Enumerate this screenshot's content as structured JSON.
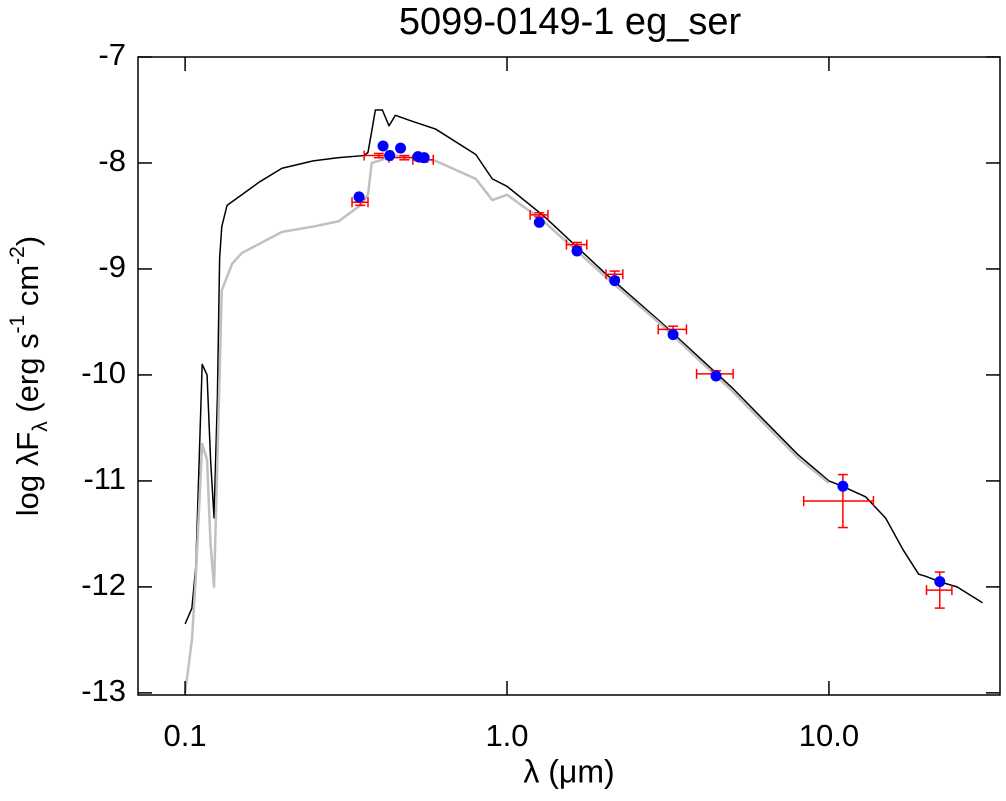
{
  "chart_data": {
    "type": "scatter",
    "title": "5099-0149-1   eg_ser",
    "xlabel": "λ (μm)",
    "ylabel": [
      "log λF",
      "λ",
      " (erg s",
      "-1",
      " cm",
      "-2",
      ")"
    ],
    "xlog": true,
    "xlim": [
      0.0714,
      34
    ],
    "ylim": [
      -13.02,
      -7
    ],
    "xticks": [
      0.1,
      {
        "value": 1.0,
        "label": "1.0"
      },
      {
        "value": 10.0,
        "label": "10.0"
      }
    ],
    "yticks": [
      -7,
      -8,
      -9,
      -10,
      -11,
      -12,
      -13
    ],
    "series": [
      {
        "style": "line",
        "color": "#000000",
        "x": [
          0.1,
          0.105,
          0.108,
          0.113,
          0.117,
          0.12,
          0.123,
          0.126,
          0.128,
          0.13,
          0.135,
          0.15,
          0.17,
          0.2,
          0.25,
          0.3,
          0.36,
          0.37,
          0.38,
          0.39,
          0.41,
          0.43,
          0.45,
          0.5,
          0.6,
          0.8,
          0.9,
          1.0,
          1.3,
          2.0,
          3.0,
          5.0,
          8.0,
          10.0,
          11.0,
          13.0,
          15.0,
          17.0,
          19.0,
          20.0,
          22.0,
          25.0,
          30.0
        ],
        "values": [
          -12.35,
          -12.2,
          -11.8,
          -9.9,
          -10.0,
          -10.8,
          -11.35,
          -10.2,
          -8.9,
          -8.6,
          -8.4,
          -8.3,
          -8.18,
          -8.05,
          -7.98,
          -7.95,
          -7.93,
          -7.9,
          -7.7,
          -7.5,
          -7.5,
          -7.65,
          -7.55,
          -7.6,
          -7.68,
          -7.92,
          -8.15,
          -8.22,
          -8.5,
          -9.03,
          -9.5,
          -10.12,
          -10.75,
          -11.0,
          -11.05,
          -11.15,
          -11.35,
          -11.65,
          -11.88,
          -11.9,
          -11.95,
          -12.0,
          -12.15
        ]
      },
      {
        "style": "line",
        "color": "#c0c0c0",
        "x": [
          0.1,
          0.105,
          0.108,
          0.113,
          0.117,
          0.12,
          0.123,
          0.126,
          0.13,
          0.14,
          0.15,
          0.2,
          0.25,
          0.3,
          0.35,
          0.37,
          0.38,
          0.45,
          0.6,
          0.8,
          0.9,
          1.0,
          1.3,
          2.0,
          3.0,
          5.0,
          8.0,
          10.0
        ],
        "values": [
          -13.0,
          -12.5,
          -11.9,
          -10.65,
          -10.8,
          -11.6,
          -12.0,
          -10.8,
          -9.2,
          -8.95,
          -8.85,
          -8.65,
          -8.6,
          -8.55,
          -8.4,
          -8.3,
          -8.0,
          -7.93,
          -7.98,
          -8.15,
          -8.35,
          -8.3,
          -8.55,
          -9.06,
          -9.52,
          -10.15,
          -10.78,
          -11.02
        ]
      },
      {
        "style": "errorbar",
        "color": "#ff0000",
        "x": [
          0.35,
          0.4,
          0.48,
          0.55,
          1.26,
          1.65,
          2.16,
          3.28,
          4.46,
          11.05,
          22.1
        ],
        "values": [
          -8.37,
          -7.93,
          -7.95,
          -7.97,
          -8.49,
          -8.77,
          -9.05,
          -9.57,
          -9.99,
          -11.19,
          -12.03
        ],
        "xerr": [
          0.02,
          0.04,
          0.05,
          0.04,
          0.08,
          0.12,
          0.13,
          0.33,
          0.58,
          2.7,
          2.0
        ],
        "yerr": [
          0.03,
          0.02,
          0.02,
          0.02,
          0.02,
          0.02,
          0.03,
          0.03,
          0.03,
          0.25,
          0.17
        ]
      },
      {
        "style": "marker",
        "color": "#0000ff",
        "x": [
          0.347,
          0.412,
          0.432,
          0.467,
          0.529,
          0.553,
          1.26,
          1.65,
          2.16,
          3.28,
          4.46,
          11.05,
          22.1
        ],
        "values": [
          -8.32,
          -7.84,
          -7.93,
          -7.86,
          -7.94,
          -7.95,
          -8.56,
          -8.83,
          -9.11,
          -9.62,
          -10.01,
          -11.05,
          -11.95
        ]
      }
    ]
  }
}
